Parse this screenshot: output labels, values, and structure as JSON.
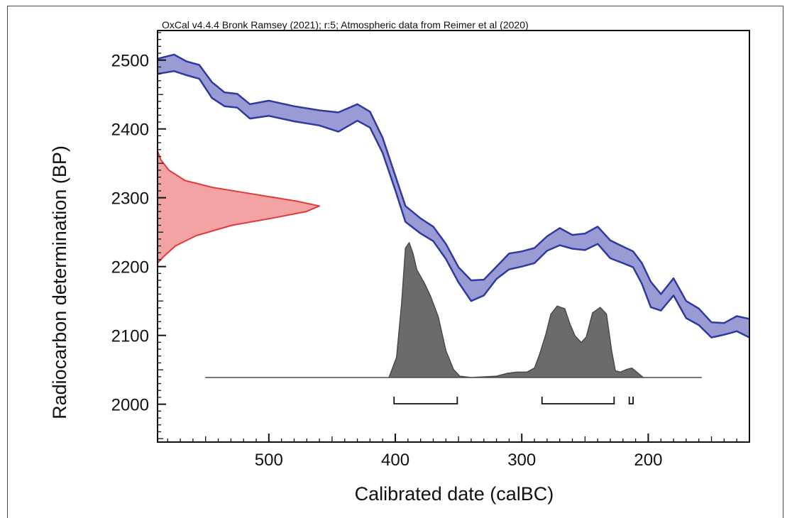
{
  "chart_data": {
    "type": "area",
    "title": "OxCal v4.4.4 Bronk Ramsey (2021); r:5; Atmospheric data from Reimer et al (2020)",
    "xlabel": "Calibrated date (calBC)",
    "ylabel": "Radiocarbon determination (BP)",
    "xlim": [
      588,
      120
    ],
    "ylim": [
      1945,
      2543
    ],
    "x_ticks": [
      500,
      400,
      300,
      200
    ],
    "x_tick_labels": [
      "500",
      "400",
      "300",
      "200"
    ],
    "y_ticks": [
      2000,
      2100,
      2200,
      2300,
      2400,
      2500
    ],
    "y_tick_labels": [
      "2000",
      "2100",
      "2200",
      "2300",
      "2400",
      "2500"
    ],
    "grid": false,
    "colors": {
      "calibration_fill": "#9a9bd4",
      "calibration_edge": "#2e3a9e",
      "measurement_fill": "#f4a3a5",
      "measurement_edge": "#e03a3a",
      "posterior_fill": "#6b6b6b",
      "posterior_edge": "#4a4a4a"
    },
    "series": [
      {
        "kind": "calibration-curve-band",
        "x": [
          588,
          575,
          565,
          555,
          545,
          535,
          525,
          515,
          500,
          480,
          460,
          445,
          430,
          420,
          410,
          400,
          392,
          380,
          370,
          360,
          350,
          340,
          330,
          320,
          310,
          300,
          290,
          280,
          270,
          260,
          250,
          240,
          230,
          220,
          212,
          205,
          198,
          190,
          180,
          170,
          160,
          150,
          140,
          130,
          120
        ],
        "upper": [
          2502,
          2508,
          2498,
          2493,
          2468,
          2453,
          2451,
          2436,
          2441,
          2433,
          2427,
          2424,
          2436,
          2425,
          2387,
          2332,
          2288,
          2270,
          2258,
          2233,
          2199,
          2180,
          2181,
          2200,
          2219,
          2222,
          2227,
          2244,
          2256,
          2246,
          2248,
          2258,
          2238,
          2229,
          2222,
          2205,
          2178,
          2160,
          2183,
          2150,
          2139,
          2119,
          2118,
          2128,
          2124
        ],
        "lower": [
          2480,
          2484,
          2478,
          2473,
          2445,
          2433,
          2431,
          2415,
          2419,
          2411,
          2405,
          2396,
          2412,
          2402,
          2365,
          2311,
          2265,
          2248,
          2237,
          2211,
          2177,
          2150,
          2158,
          2182,
          2196,
          2200,
          2205,
          2223,
          2231,
          2226,
          2224,
          2233,
          2212,
          2205,
          2199,
          2175,
          2141,
          2136,
          2158,
          2125,
          2115,
          2097,
          2101,
          2106,
          2097
        ]
      },
      {
        "kind": "measurement-distribution",
        "y": [
          2205,
          2215,
          2230,
          2245,
          2260,
          2270,
          2280,
          2288,
          2295,
          2305,
          2315,
          2325,
          2340,
          2355,
          2368
        ],
        "density": [
          0,
          0.04,
          0.11,
          0.24,
          0.46,
          0.7,
          0.92,
          1,
          0.86,
          0.6,
          0.34,
          0.17,
          0.07,
          0.02,
          0
        ]
      },
      {
        "kind": "posterior-distribution",
        "x": [
          550,
          405,
          399,
          395,
          392,
          389,
          386,
          383,
          377,
          372,
          366,
          360,
          354,
          349,
          340,
          320,
          312,
          304,
          296,
          290,
          286,
          281,
          277,
          272,
          266,
          262,
          258,
          253,
          249,
          244,
          238,
          233,
          229,
          226,
          222,
          217,
          213,
          209,
          204,
          158
        ],
        "density": [
          0,
          0,
          0.15,
          0.55,
          0.96,
          1,
          0.92,
          0.8,
          0.7,
          0.6,
          0.45,
          0.2,
          0.06,
          0.01,
          0,
          0.01,
          0.03,
          0.04,
          0.04,
          0.07,
          0.17,
          0.32,
          0.47,
          0.53,
          0.51,
          0.4,
          0.31,
          0.26,
          0.3,
          0.48,
          0.52,
          0.47,
          0.2,
          0.05,
          0.04,
          0.06,
          0.07,
          0.04,
          0,
          0
        ]
      }
    ],
    "ranges": [
      {
        "from": 401,
        "to": 351
      },
      {
        "from": 284,
        "to": 227
      },
      {
        "from": 215,
        "to": 212
      }
    ]
  }
}
